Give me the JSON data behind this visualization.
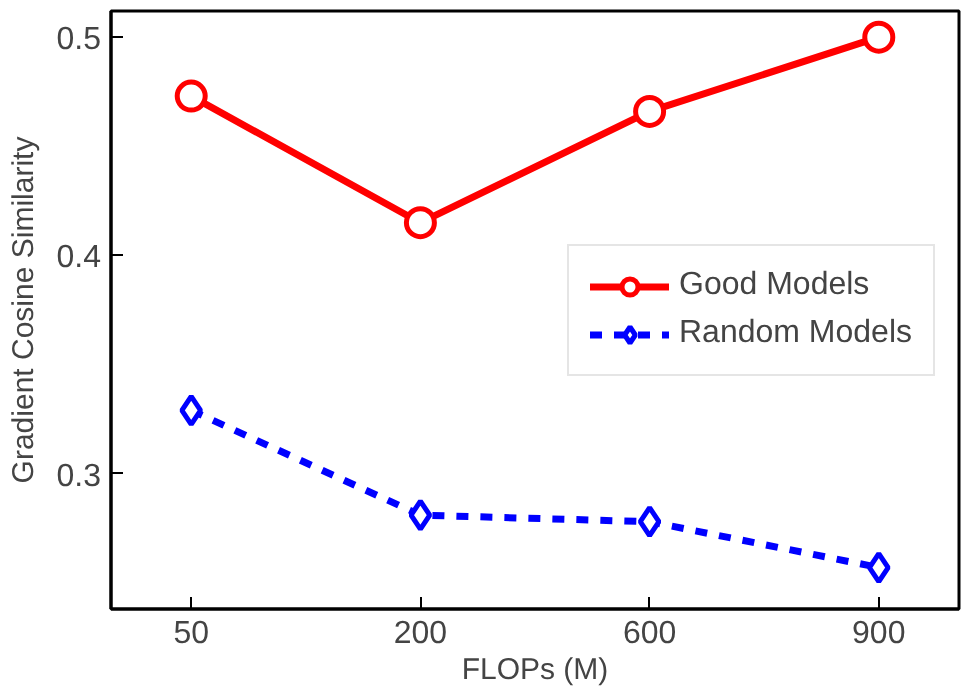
{
  "chart_data": {
    "type": "line",
    "xlabel": "FLOPs (M)",
    "ylabel": "Gradient Cosine Similarity",
    "categories": [
      "50",
      "200",
      "600",
      "900"
    ],
    "series": [
      {
        "name": "Good Models",
        "color": "#ff0000",
        "values": [
          0.473,
          0.415,
          0.466,
          0.5
        ],
        "marker": "circle",
        "line_style": "solid"
      },
      {
        "name": "Random Models",
        "color": "#0000ff",
        "values": [
          0.329,
          0.281,
          0.278,
          0.257
        ],
        "marker": "diamond",
        "line_style": "dashed"
      }
    ],
    "ylim": [
      0.238,
      0.512
    ],
    "yticks": [
      0.3,
      0.4,
      0.5
    ],
    "grid": false,
    "legend": "right"
  }
}
